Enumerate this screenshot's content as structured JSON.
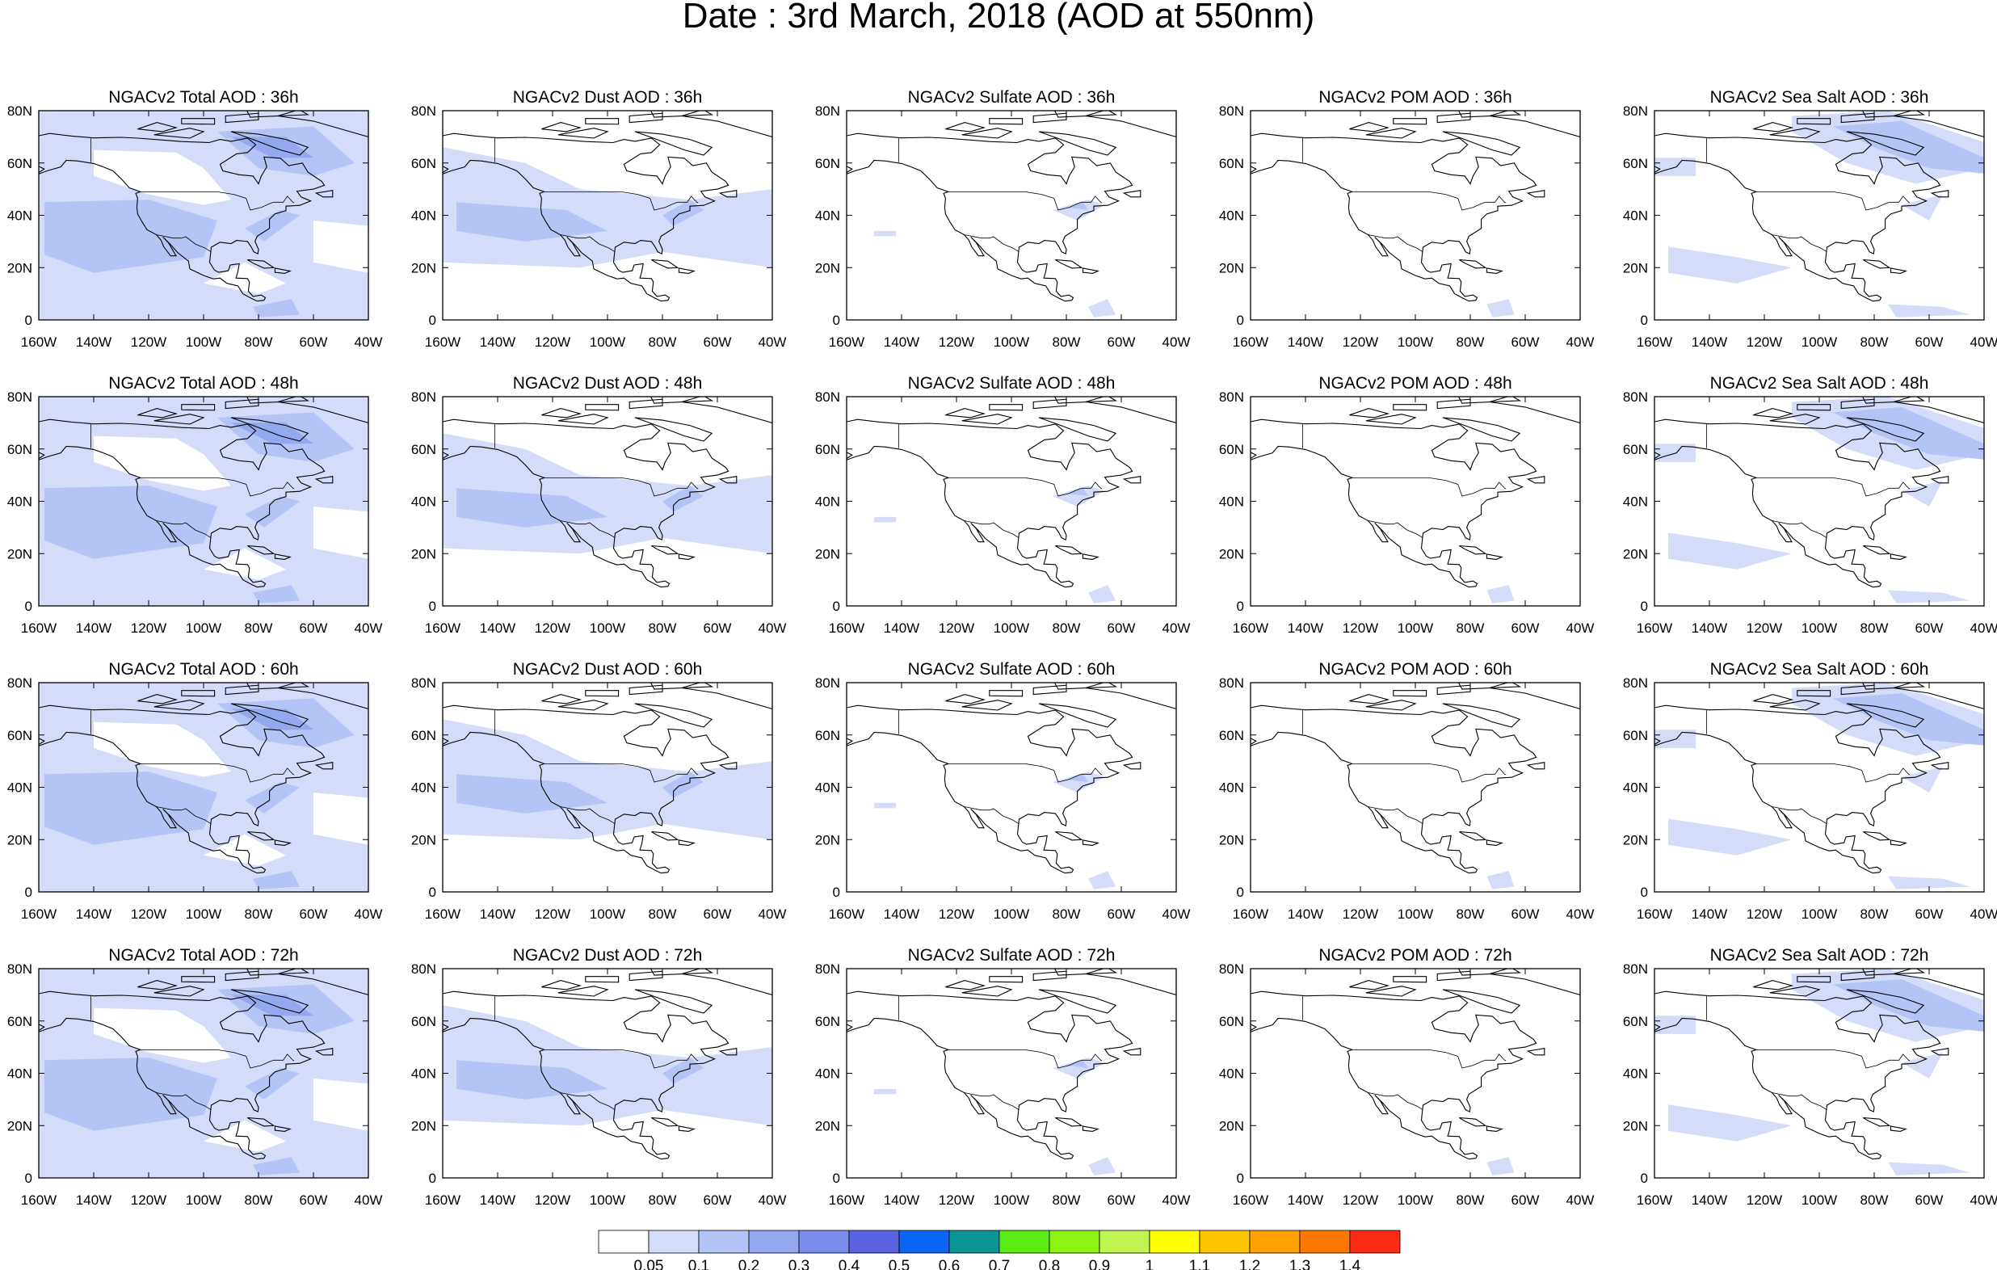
{
  "title": "Date : 3rd March, 2018 (AOD at 550nm)",
  "x_tick_labels": [
    "160W",
    "140W",
    "120W",
    "100W",
    "80W",
    "60W",
    "40W"
  ],
  "y_tick_labels": [
    "0",
    "20N",
    "40N",
    "60N",
    "80N"
  ],
  "panels": [
    [
      "NGACv2 Total AOD : 36h",
      "NGACv2 Dust AOD : 36h",
      "NGACv2 Sulfate AOD : 36h",
      "NGACv2 POM AOD : 36h",
      "NGACv2 Sea Salt AOD : 36h"
    ],
    [
      "NGACv2 Total AOD : 48h",
      "NGACv2 Dust AOD : 48h",
      "NGACv2 Sulfate AOD : 48h",
      "NGACv2 POM AOD : 48h",
      "NGACv2 Sea Salt AOD : 48h"
    ],
    [
      "NGACv2 Total AOD : 60h",
      "NGACv2 Dust AOD : 60h",
      "NGACv2 Sulfate AOD : 60h",
      "NGACv2 POM AOD : 60h",
      "NGACv2 Sea Salt AOD : 60h"
    ],
    [
      "NGACv2 Total AOD : 72h",
      "NGACv2 Dust AOD : 72h",
      "NGACv2 Sulfate AOD : 72h",
      "NGACv2 POM AOD : 72h",
      "NGACv2 Sea Salt  AOD : 72h"
    ]
  ],
  "colorbar": {
    "labels": [
      "0.05",
      "0.1",
      "0.2",
      "0.3",
      "0.4",
      "0.5",
      "0.6",
      "0.7",
      "0.8",
      "0.9",
      "1",
      "1.1",
      "1.2",
      "1.3",
      "1.4"
    ],
    "colors": [
      "#ffffff",
      "#d4dcfa",
      "#b4c4f6",
      "#94a8f0",
      "#7c8cec",
      "#5c64e4",
      "#0c64f4",
      "#0a9494",
      "#5cec14",
      "#8cf414",
      "#c0f450",
      "#ffff00",
      "#ffc400",
      "#ffa000",
      "#fc7800",
      "#fc2c14"
    ]
  }
}
